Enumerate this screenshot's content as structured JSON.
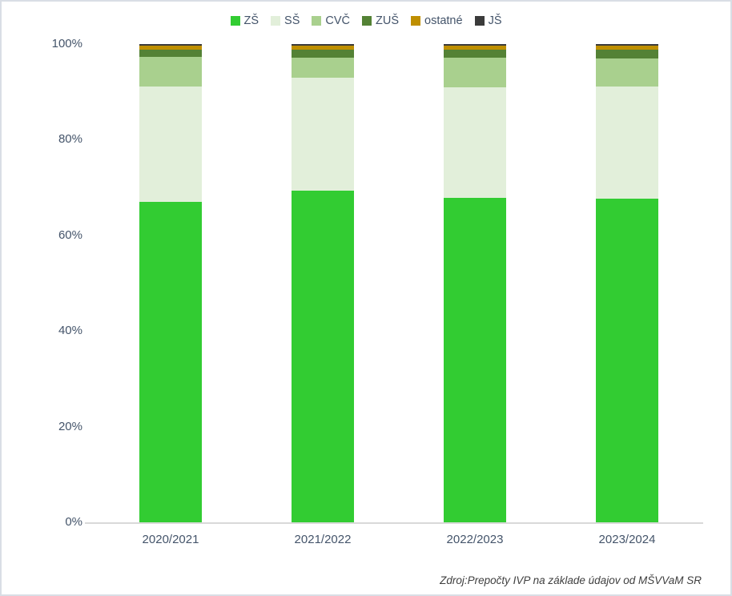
{
  "chart_data": {
    "type": "bar",
    "stacked": true,
    "stack_mode": "percent",
    "title": "",
    "categories": [
      "2020/2021",
      "2021/2022",
      "2022/2023",
      "2023/2024"
    ],
    "series": [
      {
        "name": "ZŠ",
        "color": "#32cc32",
        "values": [
          67.0,
          69.4,
          67.9,
          67.7
        ]
      },
      {
        "name": "SŠ",
        "color": "#e2efda",
        "values": [
          24.2,
          23.5,
          23.1,
          23.4
        ]
      },
      {
        "name": "CVČ",
        "color": "#a9d08e",
        "values": [
          6.1,
          4.2,
          6.1,
          5.9
        ]
      },
      {
        "name": "ZUŠ",
        "color": "#548235",
        "values": [
          1.6,
          1.7,
          1.7,
          1.8
        ]
      },
      {
        "name": "ostatné",
        "color": "#bf8f00",
        "values": [
          0.7,
          0.8,
          0.8,
          0.8
        ]
      },
      {
        "name": "JŠ",
        "color": "#3b3b3b",
        "values": [
          0.4,
          0.4,
          0.4,
          0.4
        ]
      }
    ],
    "y_ticks": [
      "0%",
      "20%",
      "40%",
      "60%",
      "80%",
      "100%"
    ],
    "ylim": [
      0,
      100
    ],
    "xlabel": "",
    "ylabel": "",
    "legend_position": "top",
    "grid": false
  },
  "source_note": "Zdroj:Prepočty IVP na základe údajov od MŠVVaM SR",
  "colors": {
    "axis_label": "#44546a",
    "axis_line": "#d9d9d9",
    "source_text": "#404040",
    "frame_border": "#d9dee5"
  }
}
